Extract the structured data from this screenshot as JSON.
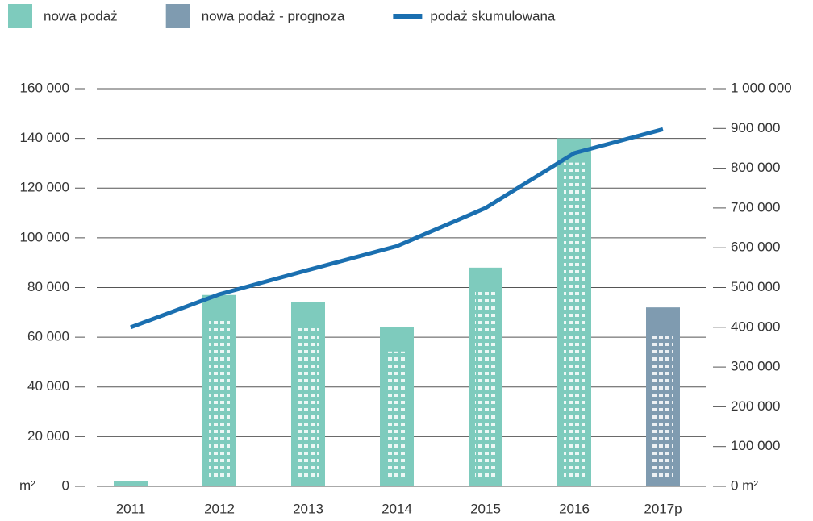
{
  "chart_data": {
    "type": "bar",
    "categories": [
      "2011",
      "2012",
      "2013",
      "2014",
      "2015",
      "2016",
      "2017p"
    ],
    "series": [
      {
        "name": "nowa podaż",
        "color": "#7ecbbd",
        "values": [
          2000,
          77000,
          74000,
          64000,
          88000,
          140000,
          null
        ]
      },
      {
        "name": "nowa podaż - prognoza",
        "color": "#7f9bb0",
        "values": [
          null,
          null,
          null,
          null,
          null,
          null,
          72000
        ]
      },
      {
        "name": "podaż skumulowana",
        "color": "#1a6fb0",
        "type": "line",
        "axis": "y2",
        "values": [
          400000,
          483000,
          544000,
          604000,
          700000,
          838000,
          898000
        ]
      }
    ],
    "ylabel": "m²",
    "ylim": [
      0,
      160000
    ],
    "yticks": [
      0,
      {
        "value": 20000,
        "label": "20 000"
      },
      {
        "value": 40000,
        "label": "40 000"
      },
      {
        "value": 60000,
        "label": "60 000"
      },
      {
        "value": 80000,
        "label": "80 000"
      },
      {
        "value": 100000,
        "label": "100 000"
      },
      {
        "value": 120000,
        "label": "120 000"
      },
      {
        "value": 140000,
        "label": "140 000"
      },
      {
        "value": 160000,
        "label": "160 000"
      }
    ],
    "y2lim": [
      0,
      1000000
    ],
    "y2ticks": [
      {
        "value": 0,
        "label": "0 m²"
      },
      {
        "value": 100000,
        "label": "100 000"
      },
      {
        "value": 200000,
        "label": "200 000"
      },
      {
        "value": 300000,
        "label": "300 000"
      },
      {
        "value": 400000,
        "label": "400 000"
      },
      {
        "value": 500000,
        "label": "500 000"
      },
      {
        "value": 600000,
        "label": "600 000"
      },
      {
        "value": 700000,
        "label": "700 000"
      },
      {
        "value": 800000,
        "label": "800 000"
      },
      {
        "value": 900000,
        "label": "900 000"
      },
      {
        "value": 1000000,
        "label": "1 000 000"
      }
    ],
    "grid": true,
    "legend": "top"
  }
}
